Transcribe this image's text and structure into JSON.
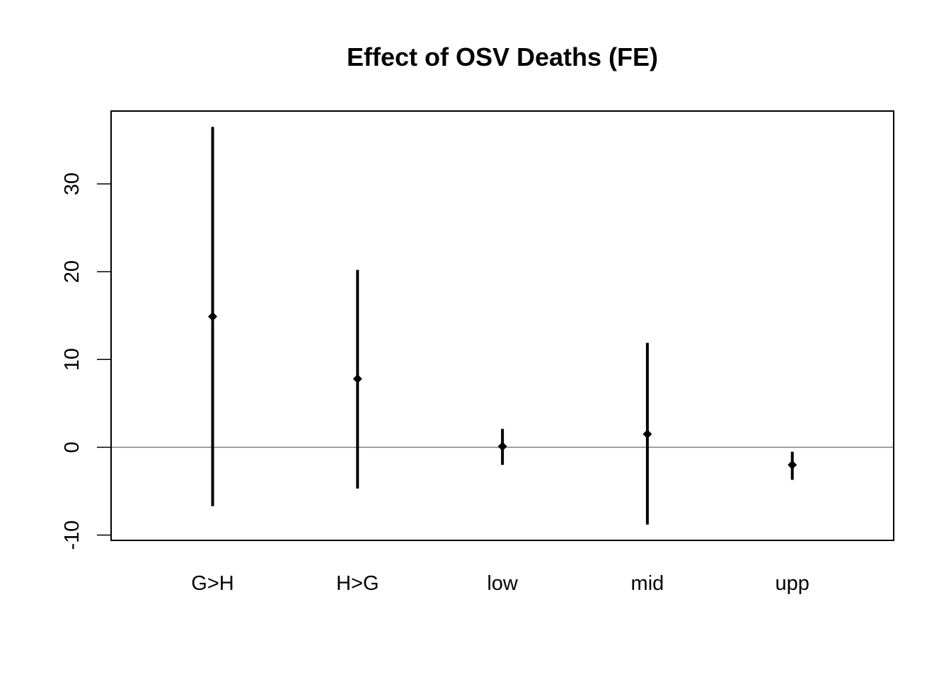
{
  "chart_data": {
    "type": "errorbar",
    "title": "Effect of OSV Deaths (FE)",
    "xlabel": "",
    "ylabel": "",
    "categories": [
      "G>H",
      "H>G",
      "low",
      "mid",
      "upp"
    ],
    "estimates": [
      14.9,
      7.8,
      0.1,
      1.5,
      -2.0
    ],
    "lower": [
      -6.7,
      -4.7,
      -2.0,
      -8.8,
      -3.7
    ],
    "upper": [
      36.5,
      20.2,
      2.1,
      11.9,
      -0.5
    ],
    "ylim": [
      -10.6,
      38.3
    ],
    "yticks": [
      -10,
      0,
      10,
      20,
      30
    ],
    "reference_line": 0,
    "grid": false,
    "legend": "none",
    "colors": {
      "marks": "#000000",
      "reference_line": "#808080"
    }
  }
}
